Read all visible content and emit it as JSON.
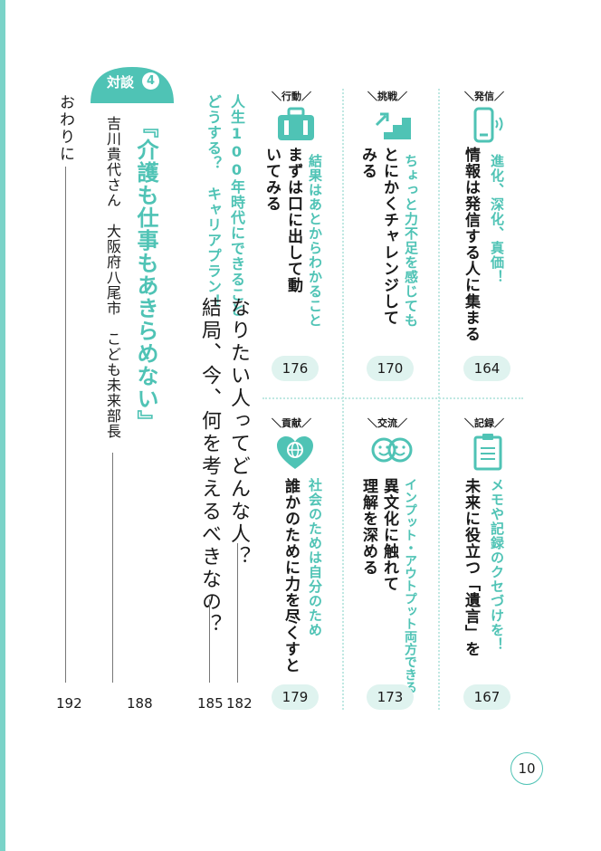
{
  "columns": [
    {
      "category": "発信",
      "subtitle": "進化、深化、真価！",
      "title": "情報は発信する人に集まる",
      "page": "164",
      "icon": "smartphone-icon"
    },
    {
      "category": "挑戦",
      "subtitle": "ちょっと力不足を感じても",
      "title": "とにかくチャレンジしてみる",
      "page": "170",
      "icon": "stairs-icon"
    },
    {
      "category": "行動",
      "subtitle": "結果はあとからわかること",
      "title": "まずは口に出して動いてみる",
      "page": "176",
      "icon": "suitcase-icon"
    },
    {
      "category": "記録",
      "subtitle": "メモや記録のクセづけを！",
      "title": "未来に役立つ「遺言」を",
      "page": "167",
      "icon": "clipboard-icon"
    },
    {
      "category": "交流",
      "subtitle": "インプット・アウトプット両方できる",
      "title_lines": [
        "異文化に触れて",
        "理解を深める"
      ],
      "page": "173",
      "icon": "smiley-faces-icon"
    },
    {
      "category": "貢献",
      "subtitle": "社会のためは自分のため",
      "title": "誰かのために力を尽くすと",
      "page": "179",
      "icon": "globe-heart-icon"
    }
  ],
  "career": {
    "subtitle_lines": [
      "人生100年時代にできること",
      "どうする？　キャリアプラン！"
    ],
    "title_line1": "なりたい人ってどんな人？",
    "title_line2": "結局、今、何を考えるべきなの？",
    "page1": "182",
    "page2": "185"
  },
  "taidan": {
    "label": "対談",
    "number": "4",
    "title": "『介護も仕事もあきらめない』",
    "guest": "吉川貴代さん　大阪府八尾市　こども未来部長",
    "page": "188"
  },
  "ending": {
    "title": "おわりに",
    "page": "192"
  },
  "page_number": "10",
  "colors": {
    "accent": "#4fc3b5",
    "pill": "#dff3ef",
    "dotted": "#bfe8e2"
  }
}
